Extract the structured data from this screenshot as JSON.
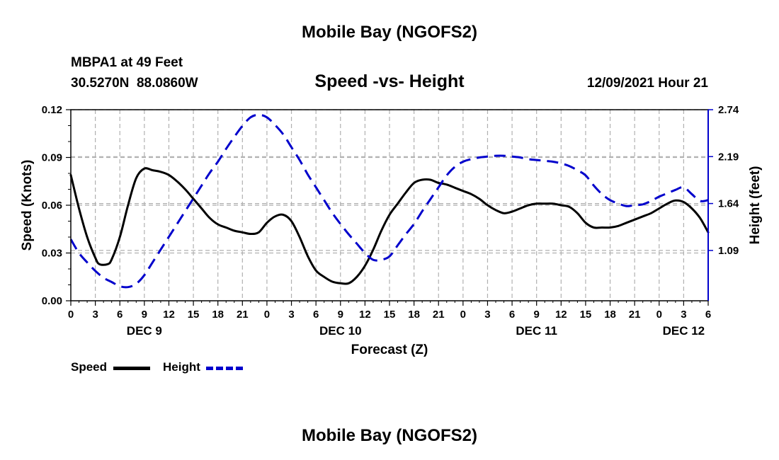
{
  "page_title": "Mobile Bay (NGOFS2)",
  "footer_title": "Mobile Bay (NGOFS2)",
  "station": {
    "name": "MBPA1 at 49 Feet",
    "coords": "30.5270N  88.0860W"
  },
  "chart_title": "Speed -vs- Height",
  "timestamp": "12/09/2021 Hour 21",
  "colors": {
    "speed": "#000000",
    "height": "#0000cc",
    "grid": "#b0b0b0"
  },
  "legend": {
    "speed": "Speed",
    "height": "Height"
  },
  "chart_data": {
    "type": "line",
    "title": "Speed -vs- Height",
    "xlabel": "Forecast (Z)",
    "ylabel": "Speed (Knots)",
    "y2label": "Height (feet)",
    "xlim": [
      0,
      78
    ],
    "ylim": [
      0,
      0.12
    ],
    "y2lim": [
      0.5,
      2.74
    ],
    "y_ticks": [
      "0.00",
      "0.03",
      "0.06",
      "0.09",
      "0.12"
    ],
    "y2_ticks": [
      "1.09",
      "1.64",
      "2.19",
      "2.74"
    ],
    "x_ticks": [
      "0",
      "3",
      "6",
      "9",
      "12",
      "15",
      "18",
      "21",
      "0",
      "3",
      "6",
      "9",
      "12",
      "15",
      "18",
      "21",
      "0",
      "3",
      "6",
      "9",
      "12",
      "15",
      "18",
      "21",
      "0",
      "3",
      "6"
    ],
    "day_labels": [
      {
        "hour": 9,
        "label": "DEC 9"
      },
      {
        "hour": 33,
        "label": "DEC 10"
      },
      {
        "hour": 57,
        "label": "DEC 11"
      },
      {
        "hour": 75,
        "label": "DEC 12"
      }
    ],
    "series": [
      {
        "name": "Speed",
        "axis": "left",
        "style": "solid",
        "x": [
          0,
          1,
          2,
          3,
          3.5,
          4.5,
          5,
          6,
          7,
          8,
          9,
          10,
          11,
          12,
          13,
          14,
          15,
          16,
          17,
          18,
          19,
          20,
          21,
          22,
          23,
          24,
          25,
          26,
          27,
          28,
          29,
          30,
          31,
          32,
          33,
          34,
          35,
          36,
          37,
          38,
          39,
          40,
          41,
          42,
          43,
          44,
          45,
          46,
          47,
          48,
          49,
          50,
          51,
          52,
          53,
          54,
          55,
          56,
          57,
          58,
          59,
          60,
          61,
          62,
          63,
          64,
          65,
          66,
          67,
          68,
          69,
          70,
          71,
          72,
          73,
          74,
          75,
          76,
          77,
          78
        ],
        "values": [
          0.079,
          0.058,
          0.04,
          0.027,
          0.023,
          0.023,
          0.026,
          0.04,
          0.06,
          0.077,
          0.083,
          0.082,
          0.081,
          0.079,
          0.075,
          0.07,
          0.064,
          0.058,
          0.052,
          0.048,
          0.046,
          0.044,
          0.043,
          0.042,
          0.043,
          0.049,
          0.053,
          0.054,
          0.05,
          0.04,
          0.028,
          0.019,
          0.015,
          0.012,
          0.011,
          0.011,
          0.015,
          0.022,
          0.032,
          0.044,
          0.054,
          0.061,
          0.068,
          0.074,
          0.076,
          0.076,
          0.074,
          0.073,
          0.071,
          0.069,
          0.067,
          0.064,
          0.06,
          0.057,
          0.055,
          0.056,
          0.058,
          0.06,
          0.061,
          0.061,
          0.061,
          0.06,
          0.059,
          0.055,
          0.049,
          0.046,
          0.046,
          0.046,
          0.047,
          0.049,
          0.051,
          0.053,
          0.055,
          0.058,
          0.061,
          0.063,
          0.062,
          0.058,
          0.052,
          0.043
        ]
      },
      {
        "name": "Height",
        "axis": "right",
        "style": "dashed",
        "x": [
          0,
          1,
          2,
          3,
          4,
          5,
          6,
          7,
          8,
          9,
          10,
          11,
          12,
          13,
          14,
          15,
          16,
          17,
          18,
          19,
          20,
          21,
          22,
          23,
          24,
          25,
          26,
          27,
          28,
          29,
          30,
          31,
          32,
          33,
          34,
          35,
          36,
          37,
          38,
          39,
          40,
          41,
          42,
          43,
          44,
          45,
          46,
          47,
          48,
          49,
          50,
          51,
          52,
          53,
          54,
          55,
          56,
          57,
          58,
          59,
          60,
          61,
          62,
          63,
          64,
          65,
          66,
          67,
          68,
          69,
          70,
          71,
          72,
          73,
          74,
          75,
          76,
          77,
          78
        ],
        "values": [
          1.22,
          1.06,
          0.95,
          0.85,
          0.77,
          0.72,
          0.67,
          0.66,
          0.7,
          0.8,
          0.95,
          1.1,
          1.25,
          1.4,
          1.55,
          1.7,
          1.85,
          2.0,
          2.13,
          2.28,
          2.42,
          2.55,
          2.65,
          2.68,
          2.65,
          2.56,
          2.45,
          2.3,
          2.15,
          1.98,
          1.83,
          1.68,
          1.53,
          1.4,
          1.28,
          1.17,
          1.06,
          0.98,
          0.98,
          1.02,
          1.15,
          1.28,
          1.4,
          1.55,
          1.69,
          1.83,
          1.97,
          2.07,
          2.13,
          2.16,
          2.18,
          2.19,
          2.2,
          2.2,
          2.19,
          2.18,
          2.16,
          2.15,
          2.14,
          2.13,
          2.11,
          2.08,
          2.03,
          1.97,
          1.85,
          1.75,
          1.68,
          1.64,
          1.61,
          1.62,
          1.63,
          1.67,
          1.72,
          1.76,
          1.8,
          1.83,
          1.75,
          1.67,
          1.68
        ]
      }
    ]
  }
}
